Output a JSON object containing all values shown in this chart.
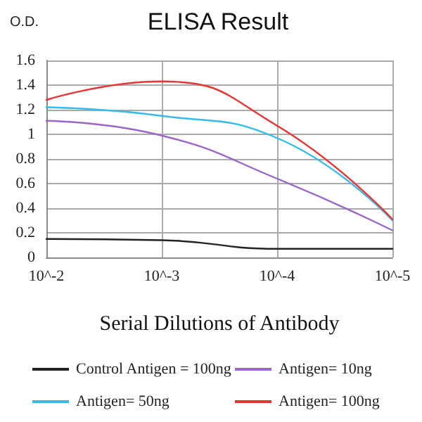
{
  "chart_data": {
    "type": "line",
    "title": "ELISA Result",
    "ylabel": "O.D.",
    "xlabel": "Serial Dilutions of Antibody",
    "categories": [
      "10^-2",
      "10^-3",
      "10^-4",
      "10^-5"
    ],
    "series": [
      {
        "name": "Control Antigen = 100ng",
        "color": "#222222",
        "values": [
          0.15,
          0.14,
          0.07,
          0.07
        ]
      },
      {
        "name": "Antigen= 10ng",
        "color": "#9966cc",
        "values": [
          1.11,
          0.99,
          0.64,
          0.22
        ]
      },
      {
        "name": "Antigen= 50ng",
        "color": "#33bbee",
        "values": [
          1.22,
          1.15,
          0.97,
          0.3
        ]
      },
      {
        "name": "Antigen= 100ng",
        "color": "#ee3333",
        "values": [
          1.28,
          1.43,
          1.07,
          0.31
        ]
      }
    ],
    "ylim": [
      0,
      1.6
    ],
    "yticks": [
      0,
      0.2,
      0.4,
      0.6,
      0.8,
      1,
      1.2,
      1.4,
      1.6
    ],
    "grid": true,
    "legend": "bottom",
    "marker": "none",
    "line_style": "solid"
  }
}
